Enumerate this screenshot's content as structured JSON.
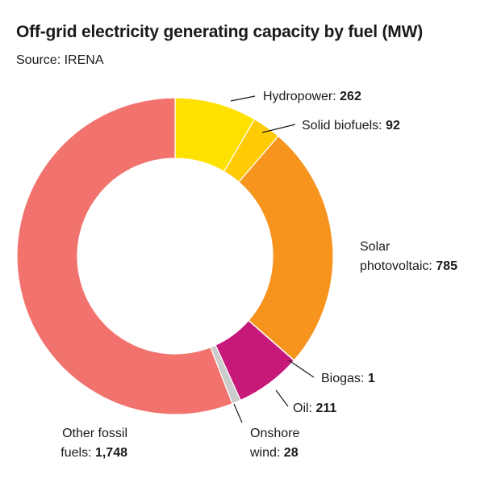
{
  "chart_data": {
    "type": "pie",
    "title": "Off-grid electricity generating capacity by fuel (MW)",
    "subtitle": "Source: IRENA",
    "donut": true,
    "slices": [
      {
        "label": "Hydropower",
        "value": 262,
        "display": "262",
        "color": "#FFE100"
      },
      {
        "label": "Solid biofuels",
        "value": 92,
        "display": "92",
        "color": "#FFCB05"
      },
      {
        "label": "Solar photovoltaic",
        "value": 785,
        "display": "785",
        "color": "#F7941D"
      },
      {
        "label": "Biogas",
        "value": 1,
        "display": "1",
        "color": "#3d2b1f"
      },
      {
        "label": "Oil",
        "value": 211,
        "display": "211",
        "color": "#C7197A"
      },
      {
        "label": "Onshore wind",
        "value": 28,
        "display": "28",
        "color": "#CCCCCC"
      },
      {
        "label": "Other fossil fuels",
        "value": 1748,
        "display": "1,748",
        "color": "#F2736E"
      }
    ]
  }
}
